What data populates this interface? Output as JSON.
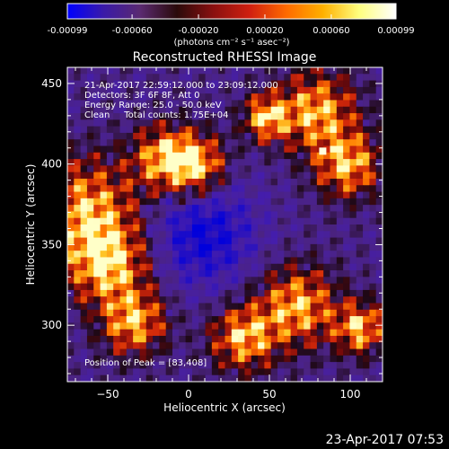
{
  "colorbar": {
    "ticks": [
      "-0.00099",
      "-0.00060",
      "-0.00020",
      "0.00020",
      "0.00060",
      "0.00099"
    ],
    "tick_values": [
      -0.00099,
      -0.0006,
      -0.0002,
      0.0002,
      0.0006,
      0.00099
    ],
    "range": [
      -0.00099,
      0.00099
    ],
    "unit_label": "(photons cm⁻² s⁻¹ asec⁻²)",
    "colors": [
      "#0000ff",
      "#3a1aa8",
      "#5a2a70",
      "#2a0a0a",
      "#8a1010",
      "#d02010",
      "#ff6a00",
      "#ffb000",
      "#ffff80",
      "#ffffff"
    ]
  },
  "chart_data": {
    "type": "heatmap",
    "title": "Reconstructed RHESSI Image",
    "xlabel": "Heliocentric X (arcsec)",
    "ylabel": "Heliocentric Y (arcsec)",
    "xlim": [
      -75,
      120
    ],
    "ylim": [
      265,
      460
    ],
    "x_ticks": [
      -50,
      0,
      50,
      100
    ],
    "y_ticks": [
      300,
      350,
      400,
      450
    ],
    "annotations": [
      "21-Apr-2017 22:59:12.000 to 23:09:12.000",
      "Detectors: 3F 6F 8F, Att 0",
      "Energy Range: 25.0 - 50.0 keV",
      "Clean     Total counts: 1.75E+04"
    ],
    "peak_label": "Position of Peak = [83,408]",
    "peak": [
      83,
      408
    ]
  },
  "footer": {
    "timestamp": "23-Apr-2017 07:53"
  }
}
